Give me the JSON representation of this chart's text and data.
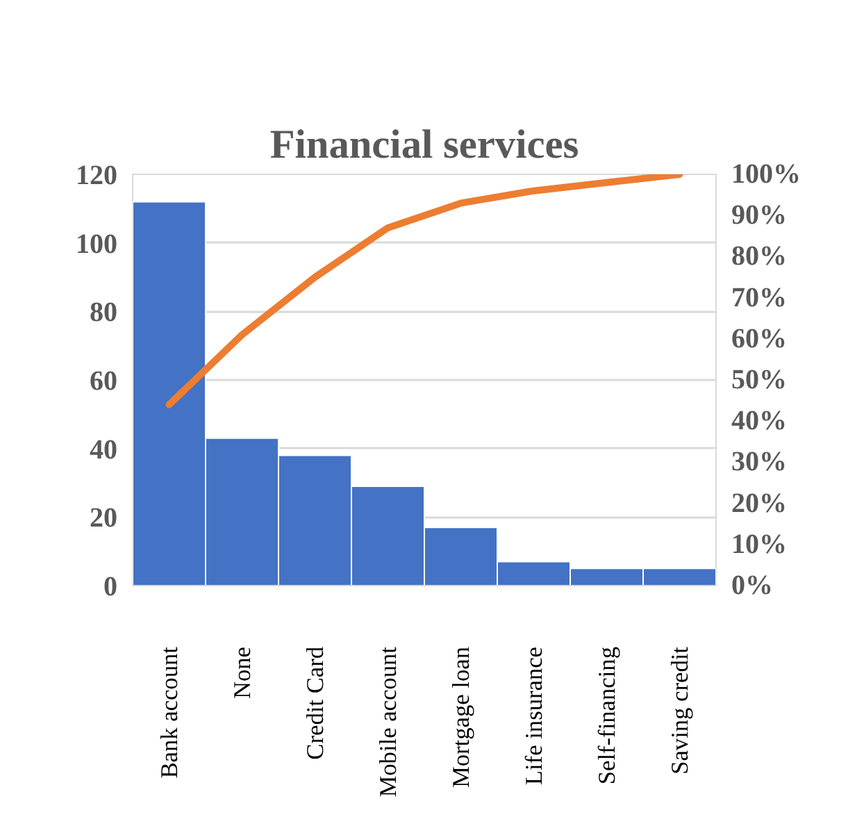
{
  "chart_data": {
    "type": "bar",
    "title": "Financial services",
    "categories": [
      "Bank account",
      "None",
      "Credit Card",
      "Mobile account",
      "Mortgage loan",
      "Life insurance",
      "Self-financing",
      "Saving credit"
    ],
    "series": [
      {
        "color": "#4472c4",
        "values": [
          112,
          43,
          38,
          29,
          17,
          7,
          5,
          5
        ]
      },
      {
        "type": "line",
        "axis": "y2",
        "color": "#ed7d31",
        "values": [
          44,
          61,
          75,
          87,
          93,
          96,
          98,
          100
        ]
      }
    ],
    "ylim": [
      0,
      120
    ],
    "yticks": [
      0,
      20,
      40,
      60,
      80,
      100,
      120
    ],
    "y2lim": [
      0,
      100
    ],
    "y2ticks": [
      {
        "value": 0,
        "label": "0%"
      },
      {
        "value": 10,
        "label": "10%"
      },
      {
        "value": 20,
        "label": "20%"
      },
      {
        "value": 30,
        "label": "30%"
      },
      {
        "value": 40,
        "label": "40%"
      },
      {
        "value": 50,
        "label": "50%"
      },
      {
        "value": 60,
        "label": "60%"
      },
      {
        "value": 70,
        "label": "70%"
      },
      {
        "value": 80,
        "label": "80%"
      },
      {
        "value": 90,
        "label": "90%"
      },
      {
        "value": 100,
        "label": "100%"
      }
    ],
    "grid": "y",
    "line_style": "solid"
  }
}
